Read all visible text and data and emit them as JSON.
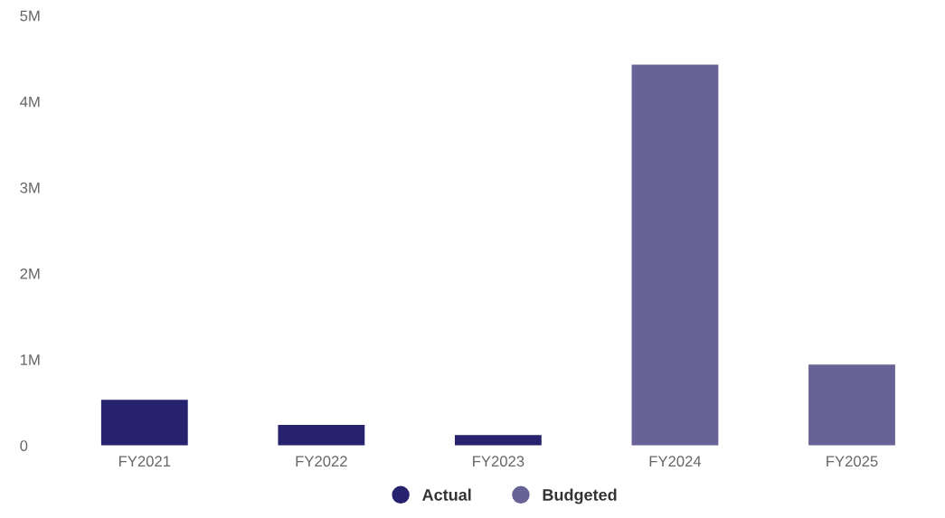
{
  "chart_data": {
    "type": "bar",
    "categories": [
      "FY2021",
      "FY2022",
      "FY2023",
      "FY2024",
      "FY2025"
    ],
    "series": [
      {
        "name": "Actual",
        "color": "#26226e",
        "values": [
          0.53,
          0.24,
          0.12,
          null,
          null
        ]
      },
      {
        "name": "Budgeted",
        "color": "#686396",
        "values": [
          null,
          null,
          null,
          4.43,
          0.94
        ]
      }
    ],
    "ylim": [
      0,
      5
    ],
    "yticks": [
      0,
      {
        "value": 1,
        "label": "1M"
      },
      {
        "value": 2,
        "label": "2M"
      },
      {
        "value": 3,
        "label": "3M"
      },
      {
        "value": 4,
        "label": "4M"
      },
      {
        "value": 5,
        "label": "5M"
      }
    ],
    "grid": false,
    "legend": "bottom"
  }
}
